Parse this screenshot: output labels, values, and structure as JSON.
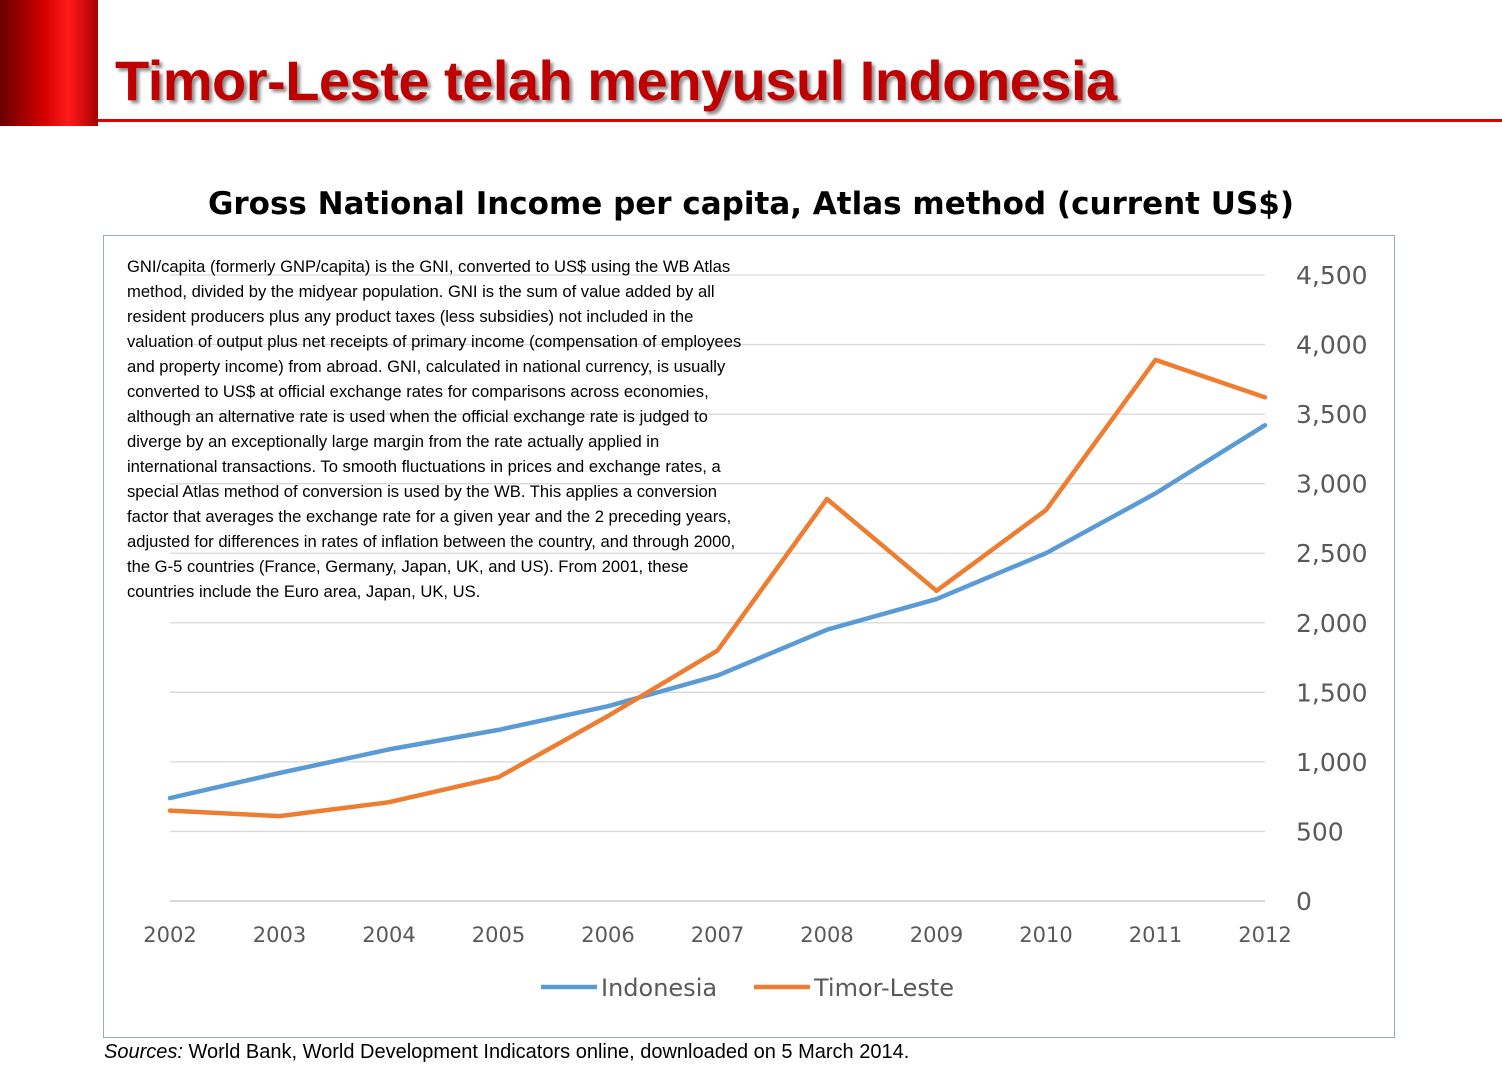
{
  "slide": {
    "title": "Timor-Leste telah menyusul Indonesia"
  },
  "note": "GNI/capita (formerly GNP/capita) is the GNI, converted to US$ using the WB Atlas method, divided by the midyear population. GNI is the sum of value added by all resident producers plus any product taxes (less subsidies) not included in the valuation of output plus net receipts of primary income (compensation of employees and property income) from abroad. GNI, calculated in national currency, is usually converted to US$ at official exchange rates for comparisons across economies, although an alternative rate is used when the official exchange rate is judged to diverge by an exceptionally large margin from the rate actually applied in international transactions. To smooth fluctuations in prices and exchange rates, a special Atlas method of conversion is used by the WB. This applies a conversion factor that averages the exchange rate for a given year and the 2 preceding years, adjusted for differences in rates of inflation between the country, and through 2000, the G-5 countries (France, Germany, Japan, UK, and US). From 2001, these countries include the Euro area, Japan, UK, US.",
  "sources": {
    "label": "Sources:",
    "text": " World Bank, World Development Indicators online, downloaded on 5 March 2014."
  },
  "chart_data": {
    "type": "line",
    "title": "Gross National Income per capita, Atlas method (current US$)",
    "x": [
      "2002",
      "2003",
      "2004",
      "2005",
      "2006",
      "2007",
      "2008",
      "2009",
      "2010",
      "2011",
      "2012"
    ],
    "series": [
      {
        "name": "Indonesia",
        "color": "#5b9bd5",
        "values": [
          740,
          920,
          1090,
          1230,
          1400,
          1620,
          1950,
          2170,
          2500,
          2930,
          3420
        ]
      },
      {
        "name": "Timor-Leste",
        "color": "#ed7d31",
        "values": [
          650,
          610,
          710,
          890,
          1330,
          1800,
          2890,
          2230,
          2810,
          3890,
          3620
        ]
      }
    ],
    "yticks": [
      "0",
      "500",
      "1,000",
      "1,500",
      "2,000",
      "2,500",
      "3,000",
      "3,500",
      "4,000",
      "4,500"
    ],
    "ylim": [
      0,
      4500
    ],
    "y_axis_position": "right",
    "grid": true,
    "legend": "bottom-center",
    "gridline_color": "#d9d9d9"
  }
}
